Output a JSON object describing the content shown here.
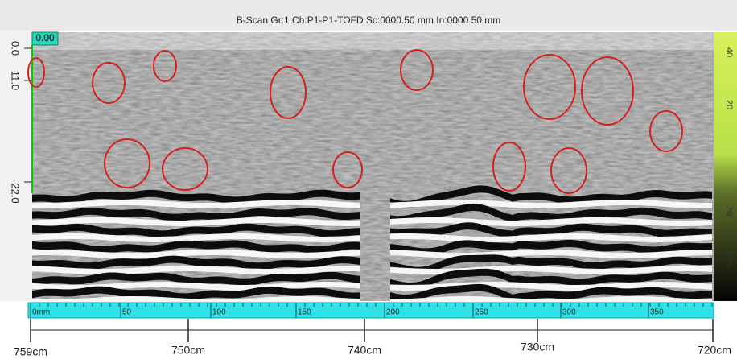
{
  "header": {
    "title": "B-Scan Gr:1 Ch:P1-P1-TOFD Sc:0000.50 mm In:0000.50 mm"
  },
  "scan": {
    "cursor_value": "0.00",
    "depth_labels": [
      "0.0",
      "11.0",
      "22.0"
    ],
    "amplitude_labels": [
      "40",
      "20",
      "20",
      "40%"
    ]
  },
  "ruler": {
    "labels": [
      "0mm",
      "50",
      "100",
      "150",
      "200",
      "250",
      "300",
      "350"
    ]
  },
  "position": {
    "labels": [
      "759cm",
      "750cm",
      "740cm",
      "730cm",
      "720cm"
    ]
  }
}
